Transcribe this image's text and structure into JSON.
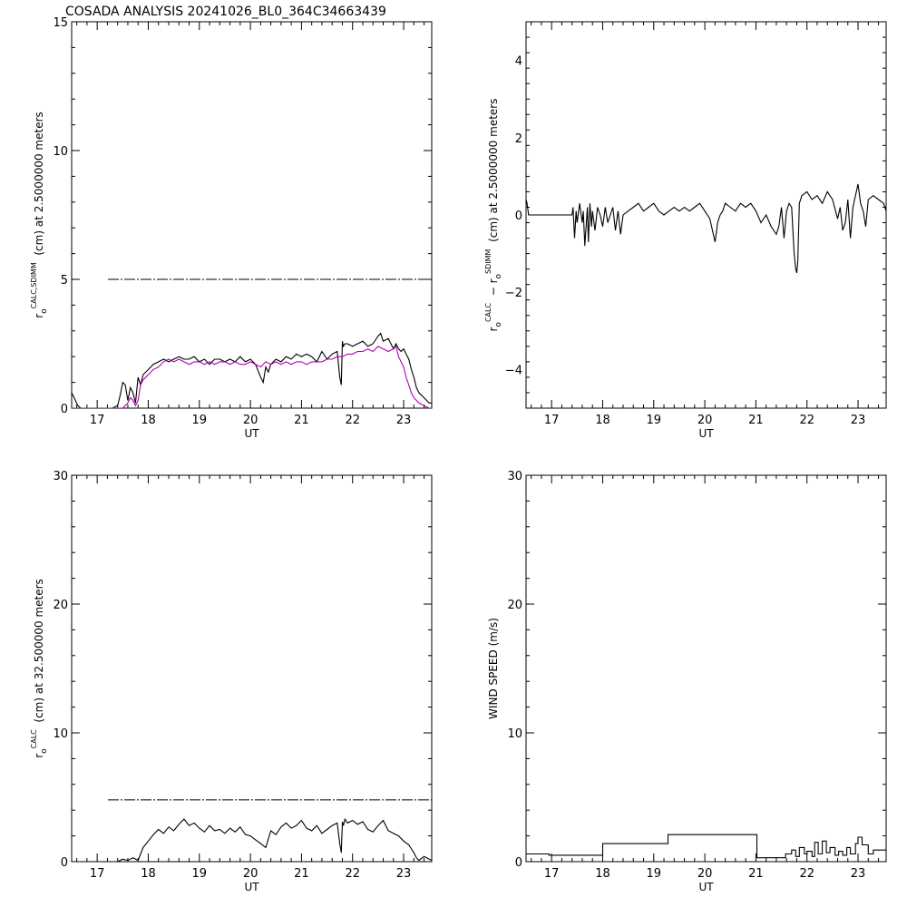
{
  "figure": {
    "title": "COSADA ANALYSIS  20241026_BL0_364C34663439"
  },
  "colors": {
    "black_series": "#000000",
    "magenta_series": "#b000b0",
    "axis": "#000000"
  },
  "chart_data": [
    {
      "id": "p1",
      "type": "line",
      "xlabel": "UT",
      "ylabel": "r_o^{CALC,SDIMM} (cm)  at  2.5000000 meters",
      "xlim": [
        16.5,
        23.55
      ],
      "ylim": [
        0,
        15
      ],
      "xticks": [
        17,
        18,
        19,
        20,
        21,
        22,
        23
      ],
      "yticks": [
        0,
        5,
        10,
        15
      ],
      "reference_line": {
        "y": 5,
        "style": "dash-dot"
      },
      "series": [
        {
          "color": "#000000",
          "x": [
            16.5,
            16.55,
            16.62,
            16.68,
            16.75,
            16.8,
            16.85,
            16.92,
            17.0,
            17.1,
            17.2,
            17.3,
            17.4,
            17.45,
            17.5,
            17.55,
            17.6,
            17.65,
            17.7,
            17.75,
            17.8,
            17.85,
            17.9,
            18.0,
            18.1,
            18.2,
            18.3,
            18.4,
            18.5,
            18.6,
            18.7,
            18.8,
            18.9,
            19.0,
            19.1,
            19.2,
            19.3,
            19.4,
            19.5,
            19.6,
            19.7,
            19.8,
            19.9,
            20.0,
            20.1,
            20.2,
            20.25,
            20.3,
            20.35,
            20.4,
            20.5,
            20.6,
            20.7,
            20.8,
            20.9,
            21.0,
            21.1,
            21.2,
            21.3,
            21.4,
            21.5,
            21.6,
            21.7,
            21.75,
            21.78,
            21.8,
            21.82,
            21.85,
            21.9,
            22.0,
            22.1,
            22.2,
            22.3,
            22.4,
            22.5,
            22.55,
            22.6,
            22.7,
            22.75,
            22.8,
            22.85,
            22.9,
            22.95,
            23.0,
            23.05,
            23.1,
            23.15,
            23.2,
            23.25,
            23.3,
            23.35,
            23.4,
            23.45,
            23.5,
            23.55
          ],
          "y": [
            0.6,
            0.4,
            0.1,
            0,
            0,
            0,
            0,
            0,
            0,
            0,
            0,
            0,
            0.1,
            0.5,
            1.0,
            0.9,
            0.3,
            0.8,
            0.6,
            0.2,
            1.2,
            0.9,
            1.3,
            1.5,
            1.7,
            1.8,
            1.9,
            1.8,
            1.9,
            2.0,
            1.9,
            1.9,
            2.0,
            1.8,
            1.9,
            1.7,
            1.9,
            1.9,
            1.8,
            1.9,
            1.8,
            2.0,
            1.8,
            1.9,
            1.7,
            1.2,
            1.0,
            1.6,
            1.4,
            1.7,
            1.9,
            1.8,
            2.0,
            1.9,
            2.1,
            2.0,
            2.1,
            2.0,
            1.8,
            2.2,
            1.9,
            2.1,
            2.2,
            1.2,
            0.9,
            2.6,
            2.4,
            2.5,
            2.5,
            2.4,
            2.5,
            2.6,
            2.4,
            2.5,
            2.8,
            2.9,
            2.6,
            2.7,
            2.5,
            2.3,
            2.5,
            2.3,
            2.2,
            2.3,
            2.1,
            1.9,
            1.5,
            1.2,
            0.8,
            0.6,
            0.5,
            0.4,
            0.3,
            0.2,
            0.2
          ]
        },
        {
          "color": "#b000b0",
          "x": [
            16.5,
            16.6,
            16.8,
            17.0,
            17.2,
            17.4,
            17.5,
            17.55,
            17.6,
            17.65,
            17.7,
            17.75,
            17.8,
            17.85,
            17.9,
            18.0,
            18.1,
            18.2,
            18.3,
            18.4,
            18.5,
            18.6,
            18.7,
            18.8,
            18.9,
            19.0,
            19.1,
            19.2,
            19.3,
            19.4,
            19.5,
            19.6,
            19.7,
            19.8,
            19.9,
            20.0,
            20.1,
            20.2,
            20.3,
            20.4,
            20.5,
            20.6,
            20.7,
            20.8,
            20.9,
            21.0,
            21.1,
            21.2,
            21.3,
            21.4,
            21.5,
            21.6,
            21.7,
            21.8,
            21.9,
            22.0,
            22.1,
            22.2,
            22.3,
            22.4,
            22.5,
            22.6,
            22.7,
            22.8,
            22.85,
            22.9,
            22.95,
            23.0,
            23.05,
            23.1,
            23.15,
            23.2,
            23.3,
            23.4,
            23.5,
            23.55
          ],
          "y": [
            0,
            0,
            0,
            0,
            0,
            0,
            0,
            0.1,
            0.2,
            0.4,
            0.3,
            0.1,
            0.3,
            0.9,
            1.1,
            1.3,
            1.5,
            1.6,
            1.8,
            1.9,
            1.8,
            1.9,
            1.8,
            1.7,
            1.8,
            1.8,
            1.7,
            1.8,
            1.7,
            1.8,
            1.8,
            1.7,
            1.8,
            1.7,
            1.7,
            1.8,
            1.7,
            1.6,
            1.8,
            1.7,
            1.8,
            1.7,
            1.8,
            1.7,
            1.8,
            1.8,
            1.7,
            1.8,
            1.8,
            1.8,
            1.9,
            1.9,
            2.0,
            2.0,
            2.1,
            2.1,
            2.2,
            2.2,
            2.3,
            2.2,
            2.4,
            2.3,
            2.2,
            2.3,
            2.4,
            2.0,
            1.8,
            1.6,
            1.2,
            0.9,
            0.6,
            0.4,
            0.2,
            0.1,
            0,
            0
          ]
        }
      ]
    },
    {
      "id": "p2",
      "type": "line",
      "xlabel": "UT",
      "ylabel": "r_o^{CALC} − r_o^{SDIMM} (cm)  at  2.5000000 meters",
      "xlim": [
        16.5,
        23.55
      ],
      "ylim": [
        -5,
        5
      ],
      "xticks": [
        17,
        18,
        19,
        20,
        21,
        22,
        23
      ],
      "yticks": [
        -4,
        -2,
        0,
        2,
        4
      ],
      "series": [
        {
          "color": "#000000",
          "x": [
            16.5,
            16.52,
            16.55,
            17.4,
            17.42,
            17.45,
            17.48,
            17.5,
            17.55,
            17.6,
            17.62,
            17.65,
            17.7,
            17.72,
            17.75,
            17.78,
            17.8,
            17.85,
            17.9,
            17.95,
            18.0,
            18.05,
            18.1,
            18.15,
            18.2,
            18.25,
            18.3,
            18.35,
            18.4,
            18.5,
            18.6,
            18.7,
            18.8,
            18.9,
            19.0,
            19.1,
            19.2,
            19.3,
            19.4,
            19.5,
            19.6,
            19.7,
            19.8,
            19.9,
            20.0,
            20.1,
            20.15,
            20.2,
            20.25,
            20.3,
            20.35,
            20.4,
            20.5,
            20.6,
            20.7,
            20.8,
            20.9,
            21.0,
            21.1,
            21.2,
            21.3,
            21.4,
            21.45,
            21.5,
            21.55,
            21.6,
            21.65,
            21.7,
            21.75,
            21.78,
            21.8,
            21.82,
            21.85,
            21.9,
            22.0,
            22.1,
            22.2,
            22.3,
            22.4,
            22.5,
            22.6,
            22.65,
            22.7,
            22.75,
            22.8,
            22.85,
            22.9,
            22.95,
            23.0,
            23.05,
            23.1,
            23.15,
            23.2,
            23.3,
            23.4,
            23.5,
            23.55
          ],
          "y": [
            0.4,
            0.3,
            0,
            0,
            0.2,
            -0.6,
            0.1,
            -0.2,
            0.3,
            -0.2,
            0.1,
            -0.8,
            0.2,
            -0.7,
            0.3,
            -0.3,
            0.1,
            -0.4,
            0.2,
            0,
            -0.3,
            0.2,
            -0.2,
            0,
            0.2,
            -0.4,
            0.1,
            -0.5,
            0,
            0.1,
            0.2,
            0.3,
            0.1,
            0.2,
            0.3,
            0.1,
            0,
            0.1,
            0.2,
            0.1,
            0.2,
            0.1,
            0.2,
            0.3,
            0.1,
            -0.1,
            -0.4,
            -0.7,
            -0.2,
            0,
            0.1,
            0.3,
            0.2,
            0.1,
            0.3,
            0.2,
            0.3,
            0.1,
            -0.2,
            0,
            -0.3,
            -0.5,
            -0.3,
            0.2,
            -0.6,
            0.1,
            0.3,
            0.2,
            -1.0,
            -1.4,
            -1.5,
            -1.2,
            0.3,
            0.5,
            0.6,
            0.4,
            0.5,
            0.3,
            0.6,
            0.4,
            -0.1,
            0.2,
            -0.4,
            -0.2,
            0.4,
            -0.6,
            0.2,
            0.5,
            0.8,
            0.3,
            0.1,
            -0.3,
            0.4,
            0.5,
            0.4,
            0.3,
            0.1
          ]
        }
      ]
    },
    {
      "id": "p3",
      "type": "line",
      "xlabel": "UT",
      "ylabel": "r_o^{CALC} (cm)  at  32.500000 meters",
      "xlim": [
        16.5,
        23.55
      ],
      "ylim": [
        0,
        30
      ],
      "xticks": [
        17,
        18,
        19,
        20,
        21,
        22,
        23
      ],
      "yticks": [
        0,
        10,
        20,
        30
      ],
      "reference_line": {
        "y": 4.8,
        "style": "dash-dot"
      },
      "series": [
        {
          "color": "#000000",
          "x": [
            16.5,
            17.0,
            17.4,
            17.5,
            17.6,
            17.7,
            17.8,
            17.85,
            17.9,
            18.0,
            18.1,
            18.2,
            18.3,
            18.4,
            18.5,
            18.6,
            18.7,
            18.8,
            18.9,
            19.0,
            19.1,
            19.2,
            19.3,
            19.4,
            19.5,
            19.6,
            19.7,
            19.8,
            19.9,
            20.0,
            20.1,
            20.2,
            20.3,
            20.4,
            20.5,
            20.6,
            20.7,
            20.8,
            20.9,
            21.0,
            21.1,
            21.2,
            21.3,
            21.4,
            21.5,
            21.6,
            21.7,
            21.75,
            21.78,
            21.8,
            21.82,
            21.85,
            21.9,
            22.0,
            22.1,
            22.2,
            22.3,
            22.4,
            22.5,
            22.6,
            22.7,
            22.8,
            22.9,
            23.0,
            23.1,
            23.2,
            23.25,
            23.3,
            23.4,
            23.5,
            23.55
          ],
          "y": [
            0,
            0,
            0,
            0.2,
            0.1,
            0.3,
            0.1,
            0.6,
            1.1,
            1.6,
            2.1,
            2.5,
            2.2,
            2.7,
            2.4,
            2.9,
            3.3,
            2.8,
            3.0,
            2.6,
            2.3,
            2.8,
            2.4,
            2.5,
            2.2,
            2.6,
            2.3,
            2.7,
            2.1,
            2.0,
            1.7,
            1.4,
            1.1,
            2.4,
            2.1,
            2.7,
            3.0,
            2.6,
            2.8,
            3.2,
            2.6,
            2.4,
            2.8,
            2.2,
            2.5,
            2.8,
            3.0,
            1.4,
            0.7,
            3.1,
            2.8,
            3.3,
            3.0,
            3.2,
            2.9,
            3.1,
            2.5,
            2.3,
            2.8,
            3.2,
            2.4,
            2.2,
            2.0,
            1.6,
            1.3,
            0.7,
            0.3,
            0.1,
            0.4,
            0.2,
            0.1
          ]
        }
      ]
    },
    {
      "id": "p4",
      "type": "line",
      "xlabel": "UT",
      "ylabel": "WIND SPEED (m/s)",
      "xlim": [
        16.5,
        23.55
      ],
      "ylim": [
        0,
        30
      ],
      "xticks": [
        17,
        18,
        19,
        20,
        21,
        22,
        23
      ],
      "yticks": [
        0,
        10,
        20,
        30
      ],
      "series": [
        {
          "color": "#000000",
          "step": true,
          "x": [
            16.5,
            16.95,
            18.0,
            19.28,
            21.02,
            21.58,
            21.7,
            21.78,
            21.85,
            21.95,
            22.0,
            22.1,
            22.15,
            22.22,
            22.3,
            22.38,
            22.45,
            22.55,
            22.62,
            22.7,
            22.78,
            22.85,
            22.95,
            23.0,
            23.08,
            23.2,
            23.3,
            23.55
          ],
          "y": [
            0.6,
            0.5,
            1.4,
            2.1,
            0.3,
            0.6,
            0.9,
            0.4,
            1.1,
            0.6,
            0.8,
            0.4,
            1.5,
            0.6,
            1.6,
            0.7,
            1.1,
            0.5,
            0.8,
            0.5,
            1.1,
            0.6,
            1.4,
            1.9,
            1.3,
            0.6,
            0.9,
            0.9
          ]
        }
      ]
    }
  ]
}
